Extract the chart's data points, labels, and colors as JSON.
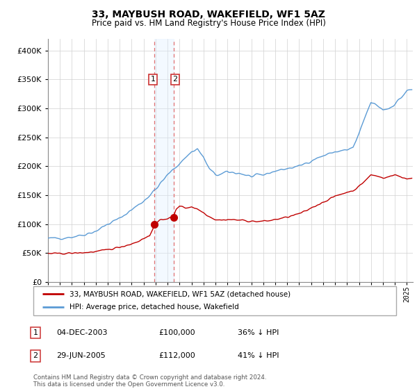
{
  "title": "33, MAYBUSH ROAD, WAKEFIELD, WF1 5AZ",
  "subtitle": "Price paid vs. HM Land Registry's House Price Index (HPI)",
  "legend_line1": "33, MAYBUSH ROAD, WAKEFIELD, WF1 5AZ (detached house)",
  "legend_line2": "HPI: Average price, detached house, Wakefield",
  "transaction1_date": "04-DEC-2003",
  "transaction1_price": "£100,000",
  "transaction1_pct": "36% ↓ HPI",
  "transaction1_x": 2003.917,
  "transaction1_y": 100000,
  "transaction2_date": "29-JUN-2005",
  "transaction2_price": "£112,000",
  "transaction2_pct": "41% ↓ HPI",
  "transaction2_x": 2005.496,
  "transaction2_y": 112000,
  "vline1_x": 2003.917,
  "vline2_x": 2005.496,
  "hpi_color": "#5b9bd5",
  "price_color": "#c00000",
  "vline_color": "#e07070",
  "span_color": "#ddeeff",
  "footer": "Contains HM Land Registry data © Crown copyright and database right 2024.\nThis data is licensed under the Open Government Licence v3.0.",
  "background_color": "#ffffff",
  "grid_color": "#d0d0d0",
  "ylim": [
    0,
    420000
  ],
  "xlim_start": 1995.0,
  "xlim_end": 2025.5
}
